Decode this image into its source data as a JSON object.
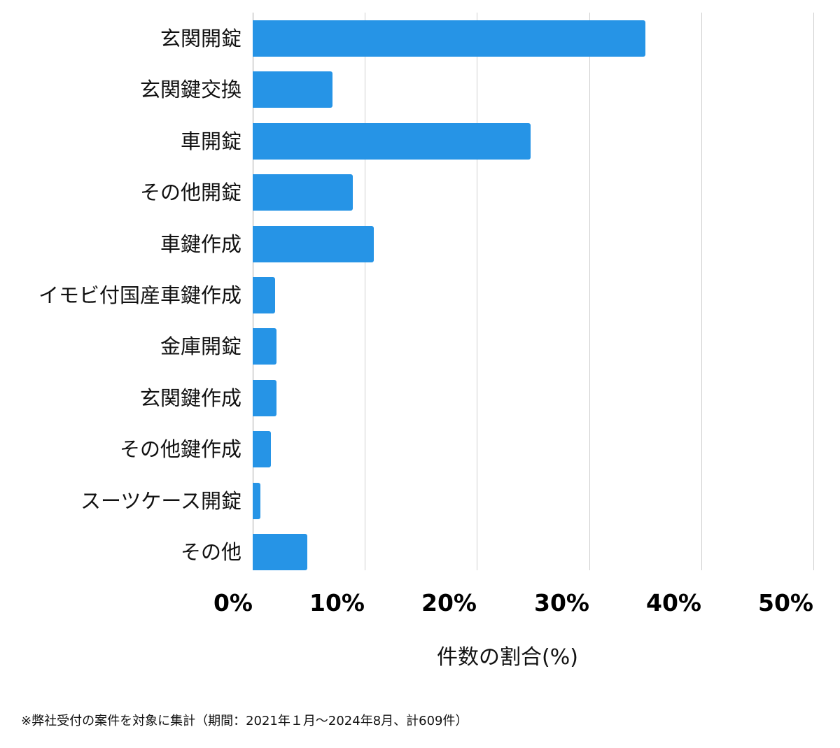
{
  "chart_data": {
    "type": "bar",
    "orientation": "horizontal",
    "title": "",
    "categories": [
      "玄関開錠",
      "玄関鍵交換",
      "車開錠",
      "その他開錠",
      "車鍵作成",
      "イモビ付国産車鍵作成",
      "金庫開錠",
      "玄関鍵作成",
      "その他鍵作成",
      "スーツケース開錠",
      "その他"
    ],
    "values": [
      35.0,
      7.1,
      24.8,
      8.9,
      10.8,
      2.0,
      2.1,
      2.1,
      1.6,
      0.7,
      4.9
    ],
    "xlabel": "件数の割合(%)",
    "ylabel": "",
    "xlim": [
      0,
      50
    ],
    "xticks": [
      "0%",
      "10%",
      "20%",
      "30%",
      "40%",
      "50%"
    ],
    "grid": true,
    "bar_color": "#2694e6",
    "legend": null
  },
  "footnote": "※弊社受付の案件を対象に集計（期間：2021年１月～2024年8月、計609件）"
}
